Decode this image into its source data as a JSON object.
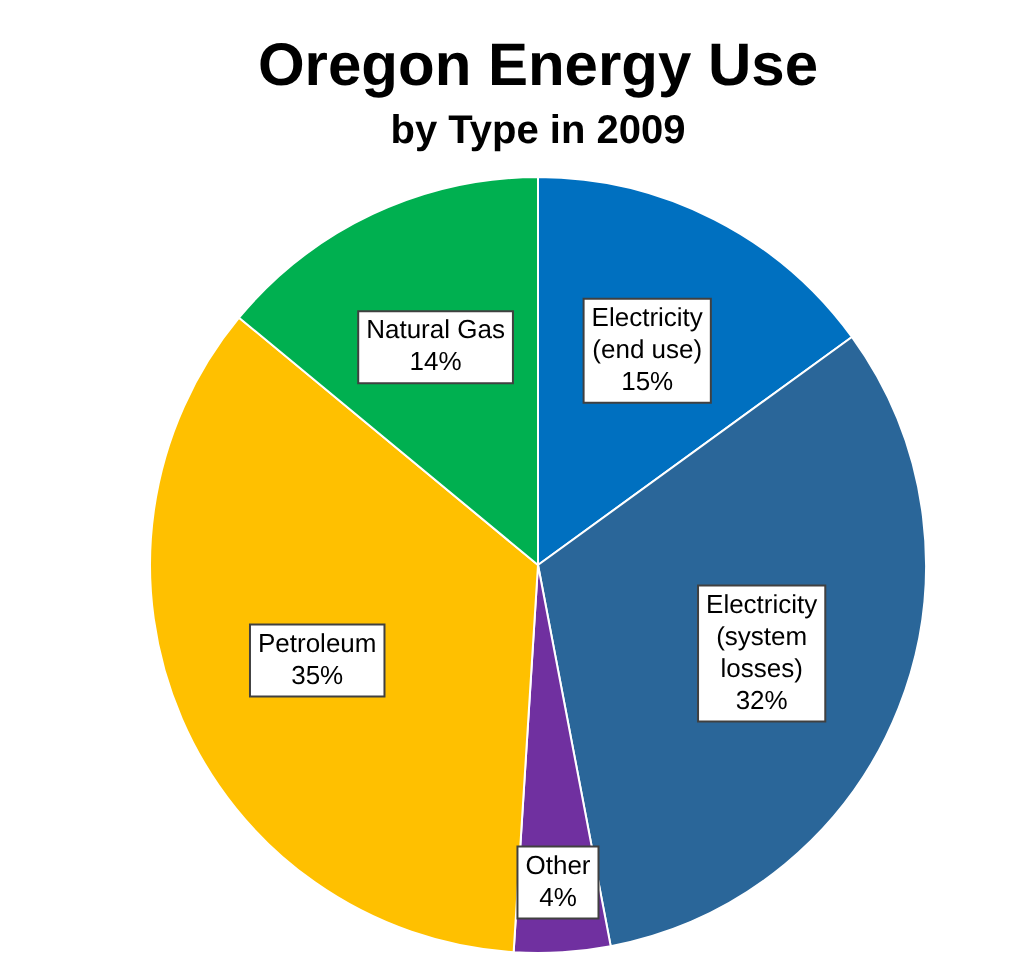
{
  "chart_data": {
    "type": "pie",
    "title": "Oregon Energy Use",
    "subtitle": "by Type in 2009",
    "categories": [
      "Electricity (end use)",
      "Electricity (system losses)",
      "Other",
      "Petroleum",
      "Natural Gas"
    ],
    "values": [
      15,
      32,
      4,
      35,
      14
    ],
    "value_labels": [
      "15%",
      "32%",
      "4%",
      "35%",
      "14%"
    ],
    "colors": [
      "#0070c0",
      "#2a6699",
      "#7030a0",
      "#ffc000",
      "#00b050"
    ],
    "legend": false
  }
}
